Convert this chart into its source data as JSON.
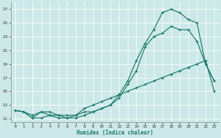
{
  "title": "",
  "xlabel": "Humidex (Indice chaleur)",
  "background_color": "#cce8e8",
  "grid_color": "#ffffff",
  "line_color": "#1a7a6a",
  "xlim": [
    -0.5,
    23.5
  ],
  "ylim": [
    10.5,
    28
  ],
  "xticks": [
    0,
    1,
    2,
    3,
    4,
    5,
    6,
    7,
    8,
    9,
    10,
    11,
    12,
    13,
    14,
    15,
    16,
    17,
    18,
    19,
    20,
    21,
    22,
    23
  ],
  "yticks": [
    11,
    13,
    15,
    17,
    19,
    21,
    23,
    25,
    27
  ],
  "line_high_x": [
    0,
    1,
    2,
    3,
    4,
    5,
    6,
    7,
    8,
    9,
    10,
    11,
    12,
    13,
    14,
    15,
    16,
    17,
    18,
    19,
    20,
    21,
    22,
    23
  ],
  "line_high_y": [
    12.2,
    12.0,
    11.1,
    11.1,
    11.5,
    11.1,
    11.1,
    11.1,
    11.5,
    12.0,
    12.5,
    13.0,
    14.5,
    16.5,
    19.5,
    22.0,
    24.0,
    26.5,
    27.0,
    26.5,
    25.5,
    25.0,
    19.0,
    16.5
  ],
  "line_mid_x": [
    0,
    1,
    2,
    3,
    4,
    5,
    6,
    7,
    8,
    9,
    10,
    11,
    12,
    13,
    14,
    15,
    16,
    17,
    18,
    19,
    20,
    21,
    22,
    23
  ],
  "line_mid_y": [
    12.2,
    12.0,
    11.1,
    12.0,
    11.5,
    11.5,
    11.1,
    11.5,
    12.0,
    12.0,
    12.5,
    13.0,
    14.0,
    16.0,
    18.0,
    21.5,
    23.0,
    23.5,
    24.5,
    24.0,
    24.0,
    22.3,
    19.0,
    16.5
  ],
  "line_low_x": [
    0,
    1,
    2,
    3,
    4,
    5,
    6,
    7,
    8,
    9,
    10,
    11,
    12,
    13,
    14,
    15,
    16,
    17,
    18,
    19,
    20,
    21,
    22,
    23
  ],
  "line_low_y": [
    12.2,
    12.0,
    11.5,
    12.0,
    12.0,
    11.5,
    11.5,
    11.5,
    12.5,
    13.0,
    13.5,
    14.0,
    14.5,
    15.0,
    15.5,
    16.0,
    16.5,
    17.0,
    17.5,
    18.0,
    18.5,
    19.0,
    19.5,
    15.0
  ]
}
